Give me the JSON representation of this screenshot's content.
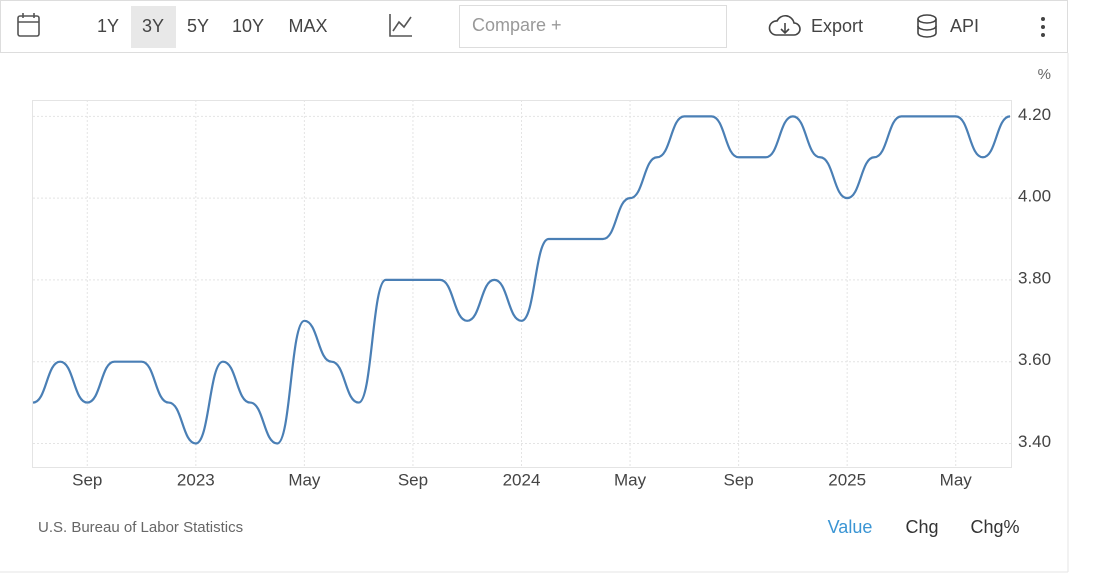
{
  "toolbar": {
    "ranges": [
      "1Y",
      "3Y",
      "5Y",
      "10Y",
      "MAX"
    ],
    "compare": "Compare +",
    "export": "Export",
    "api": "API"
  },
  "chart_data": {
    "type": "line",
    "unit": "%",
    "x": [
      "2022-07",
      "2022-08",
      "2022-09",
      "2022-10",
      "2022-11",
      "2022-12",
      "2023-01",
      "2023-02",
      "2023-03",
      "2023-04",
      "2023-05",
      "2023-06",
      "2023-07",
      "2023-08",
      "2023-09",
      "2023-10",
      "2023-11",
      "2023-12",
      "2024-01",
      "2024-02",
      "2024-03",
      "2024-04",
      "2024-05",
      "2024-06",
      "2024-07",
      "2024-08",
      "2024-09",
      "2024-10",
      "2024-11",
      "2024-12",
      "2025-01",
      "2025-02",
      "2025-03",
      "2025-04",
      "2025-05",
      "2025-06",
      "2025-07"
    ],
    "series": [
      {
        "color": "#4a7fb5",
        "values": [
          3.5,
          3.6,
          3.5,
          3.6,
          3.6,
          3.5,
          3.4,
          3.6,
          3.5,
          3.4,
          3.7,
          3.6,
          3.5,
          3.8,
          3.8,
          3.8,
          3.7,
          3.8,
          3.7,
          3.9,
          3.9,
          3.9,
          4.0,
          4.1,
          4.2,
          4.2,
          4.1,
          4.1,
          4.2,
          4.1,
          4.0,
          4.1,
          4.2,
          4.2,
          4.2,
          4.1,
          4.2
        ]
      }
    ],
    "ylim": [
      3.34,
      4.24
    ],
    "yticks": [
      {
        "value": 3.4,
        "label": "3.40"
      },
      {
        "value": 3.6,
        "label": "3.60"
      },
      {
        "value": 3.8,
        "label": "3.80"
      },
      {
        "value": 4.0,
        "label": "4.00"
      },
      {
        "value": 4.2,
        "label": "4.20"
      }
    ],
    "xticks": [
      {
        "value": "2022-09",
        "label": "Sep"
      },
      {
        "value": "2023-01",
        "label": "2023"
      },
      {
        "value": "2023-05",
        "label": "May"
      },
      {
        "value": "2023-09",
        "label": "Sep"
      },
      {
        "value": "2024-01",
        "label": "2024"
      },
      {
        "value": "2024-05",
        "label": "May"
      },
      {
        "value": "2024-09",
        "label": "Sep"
      },
      {
        "value": "2025-01",
        "label": "2025"
      },
      {
        "value": "2025-05",
        "label": "May"
      }
    ],
    "grid": true
  },
  "footer": {
    "source": "U.S. Bureau of Labor Statistics",
    "tabs": [
      "Value",
      "Chg",
      "Chg%"
    ]
  }
}
